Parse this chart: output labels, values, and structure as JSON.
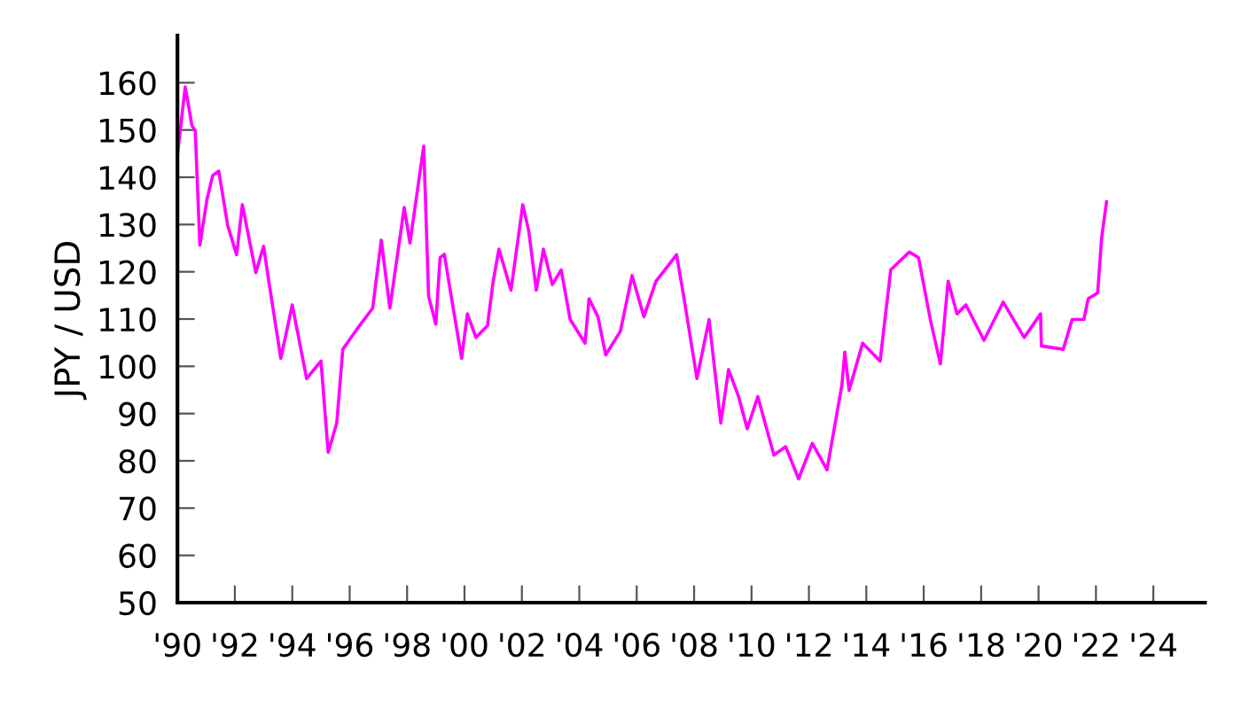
{
  "chart_data": {
    "type": "line",
    "ylabel": "JPY / USD",
    "series": [
      {
        "color": "#ff00ff",
        "x": [
          1990.0,
          1990.27,
          1990.4,
          1990.5,
          1990.62,
          1990.78,
          1991.03,
          1991.23,
          1991.44,
          1991.75,
          1992.06,
          1992.26,
          1992.73,
          1993.0,
          1993.2,
          1993.6,
          1994.0,
          1994.5,
          1995.0,
          1995.25,
          1995.55,
          1995.76,
          1996.27,
          1996.8,
          1997.1,
          1997.4,
          1997.9,
          1998.1,
          1998.58,
          1998.75,
          1999.0,
          1999.15,
          1999.3,
          1999.57,
          1999.9,
          2000.1,
          2000.4,
          2000.8,
          2001.0,
          2001.2,
          2001.62,
          2002.03,
          2002.24,
          2002.5,
          2002.75,
          2003.06,
          2003.37,
          2003.68,
          2004.2,
          2004.34,
          2004.65,
          2004.92,
          2005.43,
          2005.84,
          2006.25,
          2006.67,
          2007.07,
          2007.39,
          2007.65,
          2008.1,
          2008.52,
          2008.93,
          2009.2,
          2009.55,
          2009.85,
          2010.22,
          2010.78,
          2011.19,
          2011.64,
          2012.12,
          2012.63,
          2013.15,
          2013.25,
          2013.4,
          2013.87,
          2014.48,
          2014.85,
          2015.5,
          2015.82,
          2016.23,
          2016.58,
          2016.85,
          2017.16,
          2017.47,
          2018.1,
          2018.77,
          2019.5,
          2020.07,
          2020.1,
          2020.86,
          2021.17,
          2021.58,
          2021.73,
          2022.06,
          2022.2,
          2022.37
        ],
        "values": [
          144.8,
          159.1,
          154.7,
          151,
          149.8,
          125.6,
          135.4,
          140.4,
          141.3,
          129.8,
          123.6,
          134.2,
          119.8,
          125.4,
          117.3,
          101.7,
          113,
          97.4,
          101.1,
          81.8,
          88,
          103.6,
          108,
          112.3,
          126.7,
          112.3,
          133.6,
          126.1,
          146.6,
          114.8,
          108.9,
          123,
          123.7,
          113.6,
          101.7,
          111.1,
          106.1,
          108.6,
          118,
          124.8,
          116.1,
          134.2,
          128.6,
          116.1,
          124.8,
          117.3,
          120.4,
          109.9,
          104.9,
          114.3,
          110.5,
          102.4,
          107.4,
          119.2,
          110.5,
          118,
          121.1,
          123.6,
          114.3,
          97.4,
          109.9,
          88,
          99.3,
          93.6,
          86.8,
          93.6,
          81.2,
          83,
          76.2,
          83.7,
          78.1,
          96.1,
          103,
          94.9,
          104.9,
          101.1,
          120.4,
          124.2,
          123,
          109.9,
          100.5,
          118,
          111.1,
          113,
          105.5,
          113.6,
          106.1,
          111.1,
          104.3,
          103.6,
          109.9,
          109.9,
          114.3,
          115.5,
          127.3,
          134.8
        ]
      }
    ],
    "xlim": [
      1990,
      2025.8
    ],
    "xticks": [
      {
        "value": 1990,
        "label": "'90"
      },
      {
        "value": 1992,
        "label": "'92"
      },
      {
        "value": 1994,
        "label": "'94"
      },
      {
        "value": 1996,
        "label": "'96"
      },
      {
        "value": 1998,
        "label": "'98"
      },
      {
        "value": 2000,
        "label": "'00"
      },
      {
        "value": 2002,
        "label": "'02"
      },
      {
        "value": 2004,
        "label": "'04"
      },
      {
        "value": 2006,
        "label": "'06"
      },
      {
        "value": 2008,
        "label": "'08"
      },
      {
        "value": 2010,
        "label": "'10"
      },
      {
        "value": 2012,
        "label": "'12"
      },
      {
        "value": 2014,
        "label": "'14"
      },
      {
        "value": 2016,
        "label": "'16"
      },
      {
        "value": 2018,
        "label": "'18"
      },
      {
        "value": 2020,
        "label": "'20"
      },
      {
        "value": 2022,
        "label": "'22"
      },
      {
        "value": 2024,
        "label": "'24"
      }
    ],
    "ylim": [
      50,
      170
    ],
    "yticks": [
      50,
      60,
      70,
      80,
      90,
      100,
      110,
      120,
      130,
      140,
      150,
      160
    ],
    "grid": false,
    "marker": "none",
    "line_style": "solid"
  }
}
